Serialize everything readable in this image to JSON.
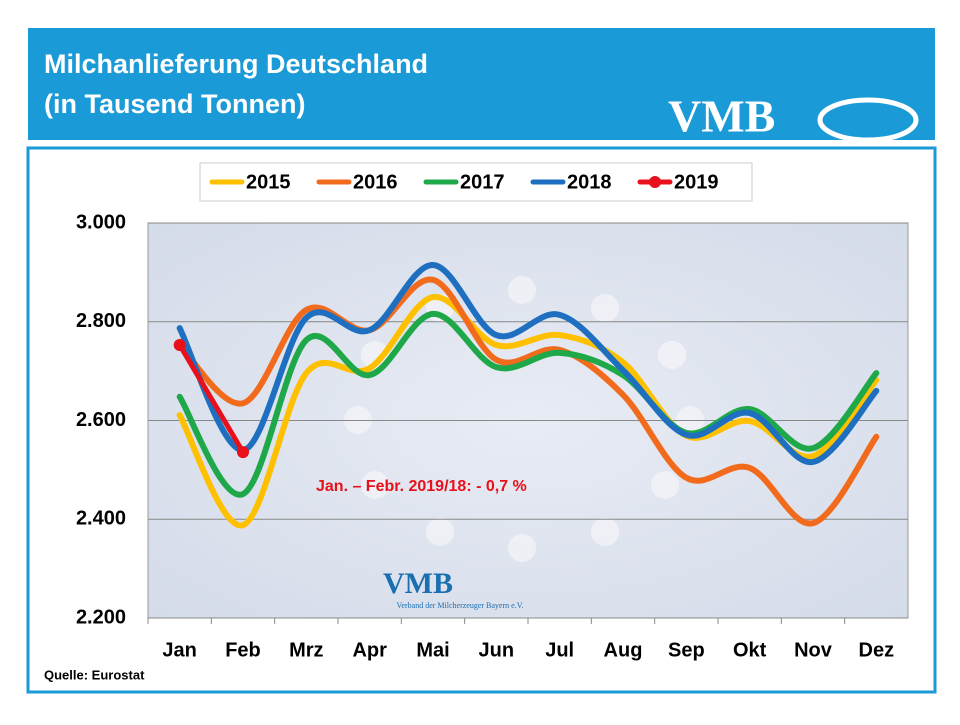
{
  "chart_data": {
    "type": "line",
    "title": "Milchanlieferung Deutschland",
    "subtitle": "(in Tausend Tonnen)",
    "logo": "VMB",
    "watermark": {
      "logo": "VMB",
      "text": "Verband der Milcherzeuger Bayern e.V."
    },
    "annotation": "Jan. – Febr. 2019/18:  - 0,7 %",
    "source": "Quelle: Eurostat",
    "categories": [
      "Jan",
      "Feb",
      "Mrz",
      "Apr",
      "Mai",
      "Jun",
      "Jul",
      "Aug",
      "Sep",
      "Okt",
      "Nov",
      "Dez"
    ],
    "series": [
      {
        "name": "2015",
        "color": "#ffc000",
        "values": [
          2611,
          2388,
          2696,
          2706,
          2850,
          2753,
          2773,
          2718,
          2569,
          2599,
          2528,
          2682
        ]
      },
      {
        "name": "2016",
        "color": "#f26b1d",
        "values": [
          2753,
          2635,
          2824,
          2783,
          2885,
          2723,
          2743,
          2652,
          2484,
          2504,
          2392,
          2567
        ]
      },
      {
        "name": "2017",
        "color": "#1fa849",
        "values": [
          2648,
          2451,
          2763,
          2692,
          2816,
          2708,
          2737,
          2692,
          2575,
          2623,
          2544,
          2696
        ]
      },
      {
        "name": "2018",
        "color": "#1e6fc0",
        "values": [
          2787,
          2540,
          2808,
          2783,
          2915,
          2773,
          2814,
          2702,
          2571,
          2615,
          2516,
          2660
        ]
      },
      {
        "name": "2019",
        "color": "#e8101a",
        "marker": "circle",
        "values": [
          2753,
          2536,
          null,
          null,
          null,
          null,
          null,
          null,
          null,
          null,
          null,
          null
        ]
      }
    ],
    "ylim": [
      2200,
      3000
    ],
    "yticks": [
      {
        "value": 2200,
        "label": "2.200"
      },
      {
        "value": 2400,
        "label": "2.400"
      },
      {
        "value": 2600,
        "label": "2.600"
      },
      {
        "value": 2800,
        "label": "2.800"
      },
      {
        "value": 3000,
        "label": "3.000"
      }
    ],
    "grid": true,
    "legend": "top"
  }
}
